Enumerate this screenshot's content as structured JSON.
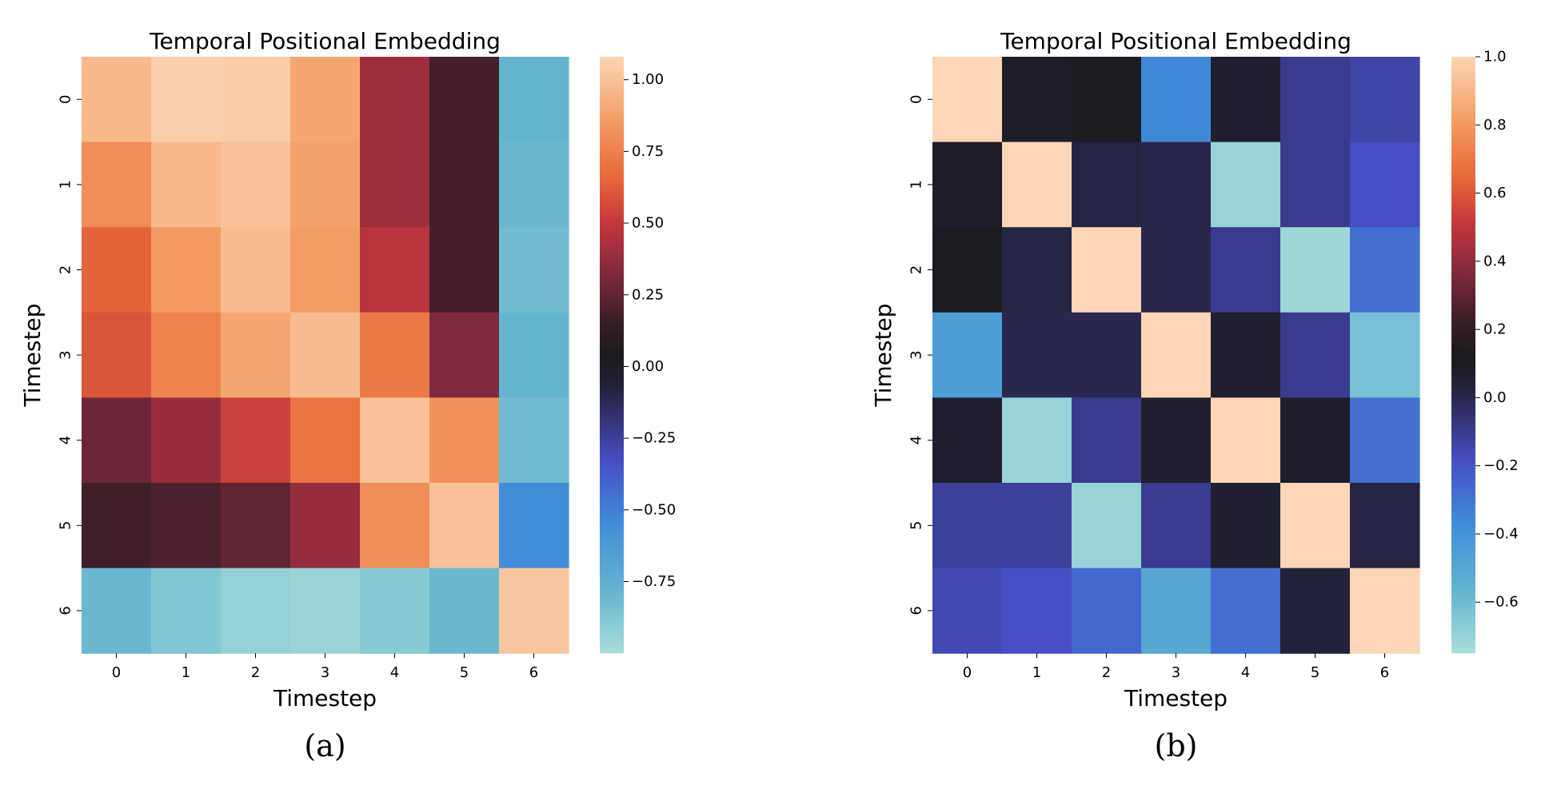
{
  "chart_data": [
    {
      "type": "heatmap",
      "panel_label": "(a)",
      "title": "Temporal Positional Embedding",
      "xlabel": "Timestep",
      "ylabel": "Timestep",
      "x_ticks": [
        "0",
        "1",
        "2",
        "3",
        "4",
        "5",
        "6"
      ],
      "y_ticks": [
        "0",
        "1",
        "2",
        "3",
        "4",
        "5",
        "6"
      ],
      "values": [
        [
          0.97,
          1.05,
          1.04,
          0.9,
          0.4,
          0.18,
          -0.78
        ],
        [
          0.8,
          0.97,
          1.0,
          0.88,
          0.4,
          0.18,
          -0.8
        ],
        [
          0.64,
          0.85,
          0.98,
          0.86,
          0.47,
          0.18,
          -0.83
        ],
        [
          0.6,
          0.76,
          0.9,
          0.98,
          0.72,
          0.32,
          -0.78
        ],
        [
          0.28,
          0.38,
          0.53,
          0.7,
          1.0,
          0.82,
          -0.82
        ],
        [
          0.17,
          0.2,
          0.25,
          0.38,
          0.8,
          1.0,
          -0.55
        ],
        [
          -0.8,
          -0.88,
          -0.93,
          -0.95,
          -0.9,
          -0.8,
          1.02
        ]
      ],
      "vmin": -1.0,
      "vmax": 1.08,
      "colorbar_ticks": [
        1.0,
        0.75,
        0.5,
        0.25,
        0.0,
        -0.25,
        -0.5,
        -0.75
      ],
      "colorbar_labels": [
        "1.00",
        "0.75",
        "0.50",
        "0.25",
        "0.00",
        "−0.25",
        "−0.50",
        "−0.75"
      ],
      "colormap": "icefire"
    },
    {
      "type": "heatmap",
      "panel_label": "(b)",
      "title": "Temporal Positional Embedding",
      "xlabel": "Timestep",
      "ylabel": "Timestep",
      "x_ticks": [
        "0",
        "1",
        "2",
        "3",
        "4",
        "5",
        "6"
      ],
      "y_ticks": [
        "0",
        "1",
        "2",
        "3",
        "4",
        "5",
        "6"
      ],
      "values": [
        [
          1.0,
          0.08,
          0.1,
          -0.35,
          0.05,
          -0.1,
          -0.14
        ],
        [
          0.08,
          1.0,
          0.02,
          0.0,
          -0.7,
          -0.1,
          -0.18
        ],
        [
          0.1,
          0.02,
          1.0,
          0.0,
          -0.1,
          -0.72,
          -0.28
        ],
        [
          -0.45,
          0.0,
          0.0,
          1.0,
          0.05,
          -0.1,
          -0.62
        ],
        [
          0.05,
          -0.7,
          -0.1,
          0.05,
          1.0,
          0.06,
          -0.28
        ],
        [
          -0.12,
          -0.12,
          -0.7,
          -0.1,
          0.05,
          1.0,
          0.02
        ],
        [
          -0.16,
          -0.18,
          -0.26,
          -0.5,
          -0.28,
          0.03,
          1.0
        ]
      ],
      "vmin": -0.75,
      "vmax": 1.0,
      "colorbar_ticks": [
        1.0,
        0.8,
        0.6,
        0.4,
        0.2,
        0.0,
        -0.2,
        -0.4,
        -0.6
      ],
      "colorbar_labels": [
        "1.0",
        "0.8",
        "0.6",
        "0.4",
        "0.2",
        "0.0",
        "−0.2",
        "−0.4",
        "−0.6"
      ],
      "colormap": "icefire"
    }
  ]
}
